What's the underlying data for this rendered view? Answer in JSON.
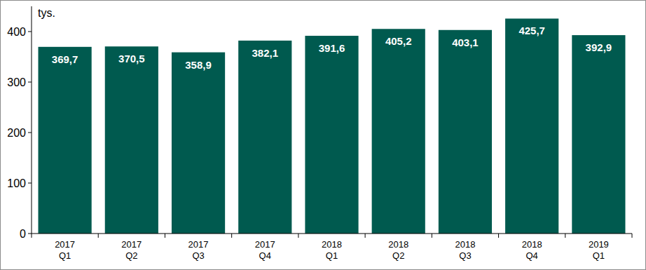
{
  "chart_data": {
    "type": "bar",
    "y_label": "tys.",
    "categories": [
      "2017\nQ1",
      "2017\nQ2",
      "2017\nQ3",
      "2017\nQ4",
      "2018\nQ1",
      "2018\nQ2",
      "2018\nQ3",
      "2018\nQ4",
      "2019\nQ1"
    ],
    "values": [
      369.7,
      370.5,
      358.9,
      382.1,
      391.6,
      405.2,
      403.1,
      425.7,
      392.9
    ],
    "value_labels": [
      "369,7",
      "370,5",
      "358,9",
      "382,1",
      "391,6",
      "405,2",
      "403,1",
      "425,7",
      "392,9"
    ],
    "color": "#005a4f",
    "ylim": [
      0,
      450
    ],
    "yticks": [
      0,
      100,
      200,
      300,
      400
    ],
    "grid": false,
    "data_labels": true
  }
}
